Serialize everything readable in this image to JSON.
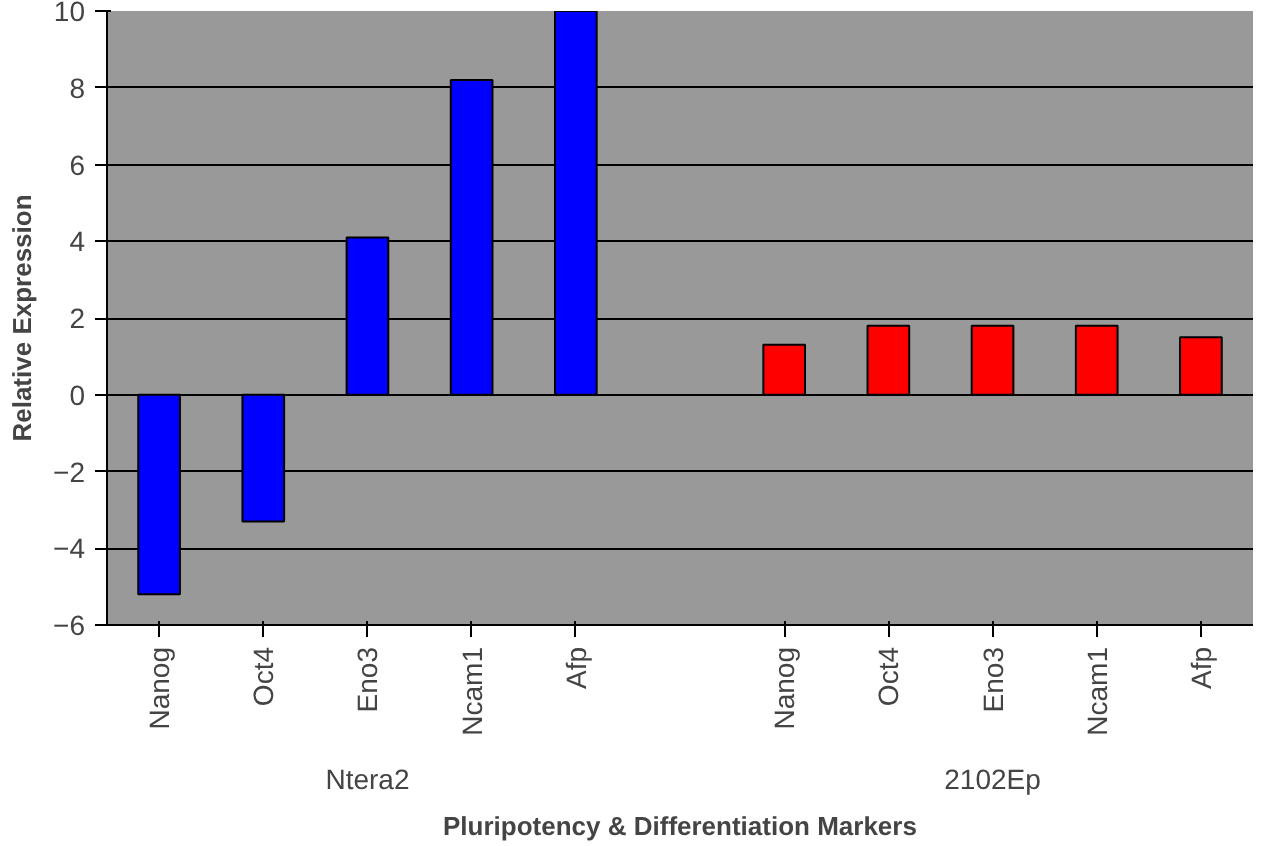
{
  "chart_data": {
    "type": "bar",
    "xlabel": "Pluripotency & Differentiation Markers",
    "ylabel": "Relative Expression",
    "categories": [
      "Nanog",
      "Oct4",
      "Eno3",
      "Ncam1",
      "Afp",
      null,
      "Nanog",
      "Oct4",
      "Eno3",
      "Ncam1",
      "Afp"
    ],
    "values": [
      -5.2,
      -3.3,
      4.1,
      8.2,
      10,
      null,
      1.3,
      1.8,
      1.8,
      1.8,
      1.5
    ],
    "colors": [
      "#0000ff",
      "#0000ff",
      "#0000ff",
      "#0000ff",
      "#0000ff",
      null,
      "#ff0000",
      "#ff0000",
      "#ff0000",
      "#ff0000",
      "#ff0000"
    ],
    "annotations": [
      "Ntera2",
      "2102Ep"
    ],
    "ylim": [
      -6,
      10
    ],
    "yticks": [
      -6,
      -4,
      -2,
      0,
      2,
      4,
      6,
      8,
      10
    ],
    "grid": "y"
  }
}
